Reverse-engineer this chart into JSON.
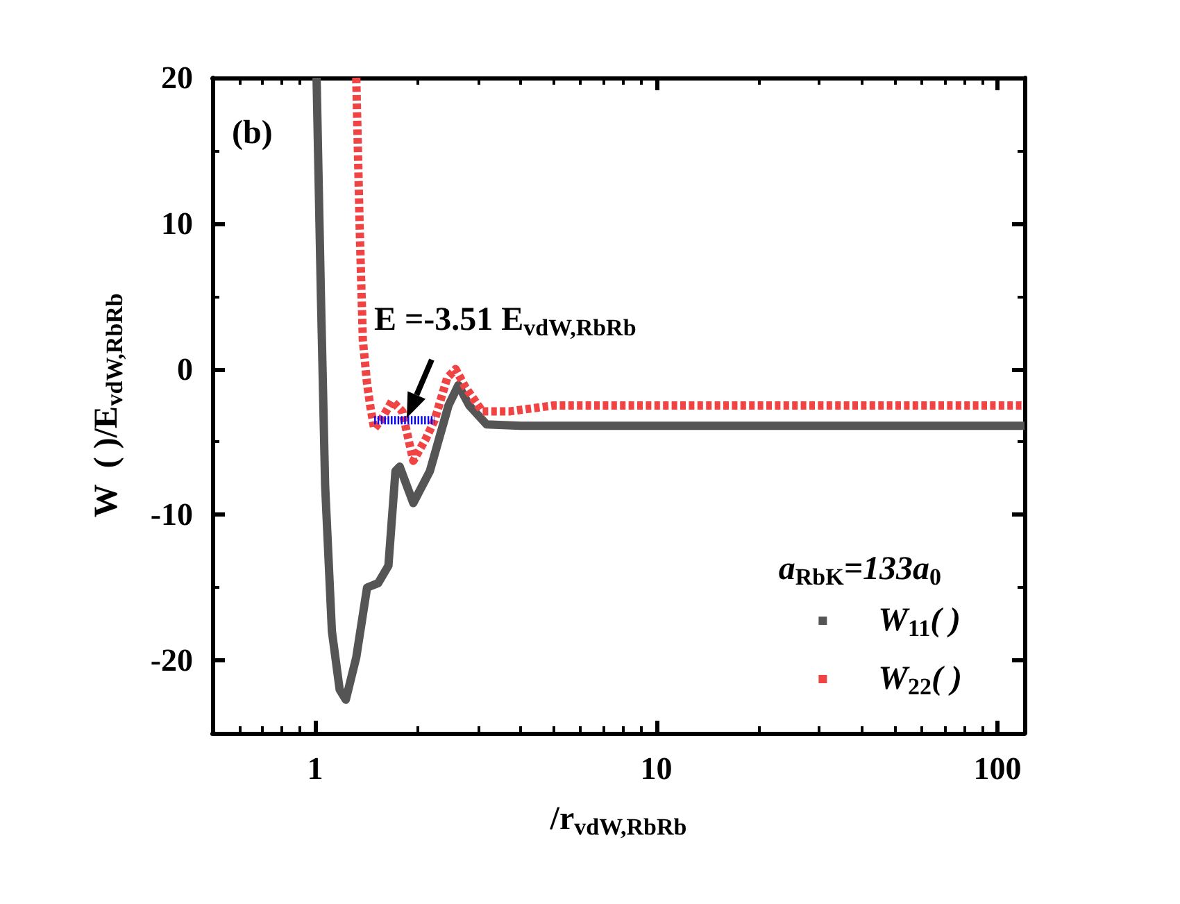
{
  "chart_data": {
    "type": "line",
    "xlabel": "/r$_{vdW,RbRb}$",
    "ylabel": "W  ( )/E$_{vdW,RbRb}$",
    "legend_title": "a$_{RbK}$=133a$_{0}$",
    "annotations": [
      "(b)",
      {
        "text": "E =-3.51 E$_{vdW,RbRb}$",
        "x": 1.9,
        "y": -3.51
      }
    ],
    "log": "x",
    "xlim": [
      0.5,
      120
    ],
    "xticks": [
      1,
      10,
      100
    ],
    "ylim": [
      -25,
      20
    ],
    "yticks": [
      -20,
      -10,
      0,
      10,
      20
    ],
    "grid": false,
    "legend": "bottom right",
    "marker": "none",
    "series": [
      {
        "name": "W$_{11}$( )",
        "color": "#555555",
        "line_style": "solid",
        "x": [
          1.01,
          1.04,
          1.07,
          1.12,
          1.18,
          1.23,
          1.32,
          1.42,
          1.53,
          1.64,
          1.72,
          1.77,
          1.94,
          2.17,
          2.46,
          2.63,
          2.83,
          3.18,
          4,
          120
        ],
        "values": [
          20,
          5,
          -8,
          -18,
          -22,
          -22.7,
          -19.8,
          -15,
          -14.7,
          -13.5,
          -7,
          -6.7,
          -9.2,
          -7,
          -2.5,
          -1.1,
          -2.5,
          -3.8,
          -3.9,
          -3.9
        ]
      },
      {
        "name": "W$_{22}$( )",
        "color": "#f04444",
        "line_style": "dashed",
        "x": [
          1.32,
          1.35,
          1.38,
          1.42,
          1.45,
          1.49,
          1.56,
          1.68,
          1.8,
          1.94,
          2.11,
          2.24,
          2.44,
          2.58,
          2.75,
          3.09,
          3.73,
          5,
          120
        ],
        "values": [
          20,
          10,
          2,
          -1,
          -2.5,
          -4.1,
          -3.5,
          -2.2,
          -2.9,
          -6.3,
          -4.8,
          -3.5,
          -0.6,
          0,
          -1.2,
          -2.9,
          -2.9,
          -2.5,
          -2.5
        ]
      },
      {
        "color": "#0000ff",
        "line_style": "dotted",
        "x": [
          1.49,
          2.24
        ],
        "values": [
          -3.51,
          -3.51
        ]
      }
    ]
  }
}
